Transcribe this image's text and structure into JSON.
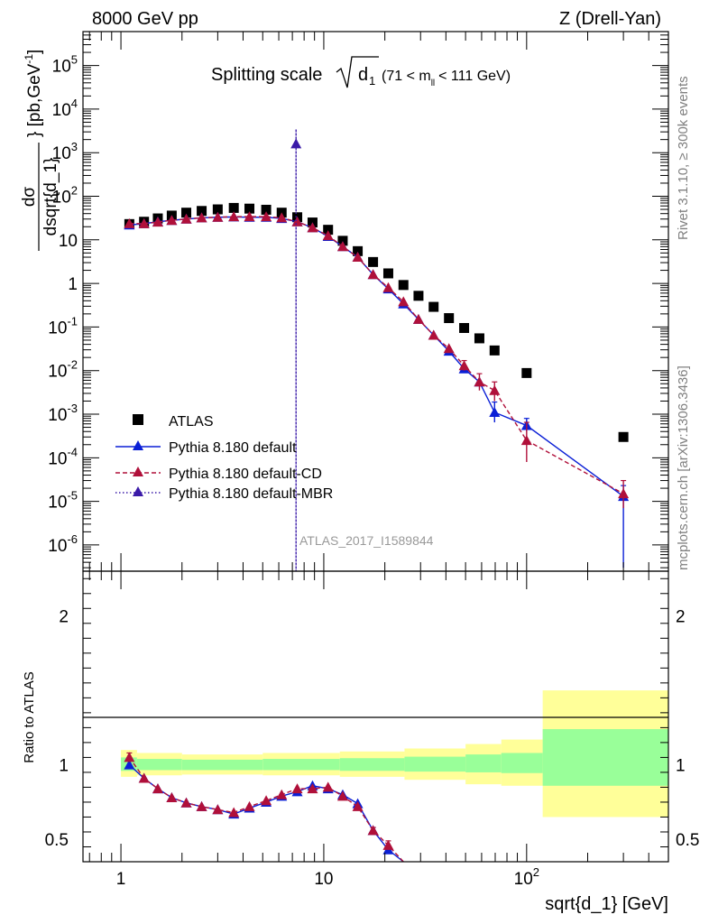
{
  "header": {
    "left": "8000 GeV pp",
    "right": "Z (Drell-Yan)"
  },
  "side_labels": {
    "rivet": "Rivet 3.1.10, ≥ 300k events",
    "mcplots": "mcplots.cern.ch [arXiv:1306.3436]"
  },
  "watermark": "ATLAS_2017_I1589844",
  "colors": {
    "atlas": "#000000",
    "default": "#0a1fd6",
    "cd": "#b0103a",
    "mbr": "#3a1aa8",
    "band_inner": "#99ff99",
    "band_outer": "#ffff99"
  },
  "chart_data": [
    {
      "type": "scatter",
      "panel": "main",
      "title": "Splitting scale √d₁ (71 < mₗₗ < 111 GeV)",
      "title_parts": {
        "pre": "Splitting scale",
        "sym": "d",
        "sub1": "1",
        "mid": "(71 < m",
        "sub2": "ll",
        "post": "< 111 GeV)"
      },
      "ylabel": "dσ/dsqrt{d_1} [pb,GeV⁻¹]",
      "ylabel_parts": {
        "num": "dσ",
        "den": "dsqrt{d_1}",
        "unit": "} [pb,GeV",
        "exp": "-1",
        "close": "]"
      },
      "xscale": "log",
      "yscale": "log",
      "xlim": [
        0.65,
        500
      ],
      "ylim": [
        2.5e-07,
        600000.0
      ],
      "yticks": [
        {
          "v": 100000.0,
          "base": "10",
          "exp": "5"
        },
        {
          "v": 10000.0,
          "base": "10",
          "exp": "4"
        },
        {
          "v": 1000.0,
          "base": "10",
          "exp": "3"
        },
        {
          "v": 100.0,
          "base": "10",
          "exp": "2"
        },
        {
          "v": 10,
          "base": "10",
          "exp": ""
        },
        {
          "v": 1,
          "base": "1",
          "exp": ""
        },
        {
          "v": 0.1,
          "base": "10",
          "exp": "-1"
        },
        {
          "v": 0.01,
          "base": "10",
          "exp": "-2"
        },
        {
          "v": 0.001,
          "base": "10",
          "exp": "-3"
        },
        {
          "v": 0.0001,
          "base": "10",
          "exp": "-4"
        },
        {
          "v": 1e-05,
          "base": "10",
          "exp": "-5"
        },
        {
          "v": 1e-06,
          "base": "10",
          "exp": "-6"
        }
      ],
      "legend": [
        {
          "key": "atlas",
          "label": "ATLAS"
        },
        {
          "key": "default",
          "label": "Pythia 8.180 default"
        },
        {
          "key": "cd",
          "label": "Pythia 8.180 default-CD"
        },
        {
          "key": "mbr",
          "label": "Pythia 8.180 default-MBR"
        }
      ],
      "series": [
        {
          "name": "ATLAS",
          "key": "atlas",
          "style": "square",
          "x": [
            1.1,
            1.3,
            1.52,
            1.78,
            2.1,
            2.5,
            3.0,
            3.6,
            4.3,
            5.2,
            6.2,
            7.4,
            8.8,
            10.5,
            12.4,
            14.7,
            17.5,
            20.8,
            24.7,
            29.3,
            34.8,
            41.4,
            49.2,
            58.5,
            69.5,
            100,
            300
          ],
          "y": [
            23,
            26,
            31,
            36,
            42,
            46,
            50,
            54,
            52,
            49,
            42,
            33,
            25,
            17,
            9.5,
            5.5,
            3.1,
            1.7,
            0.92,
            0.52,
            0.29,
            0.16,
            0.095,
            0.055,
            0.029,
            0.0088,
            0.0003
          ]
        },
        {
          "name": "Pythia 8.180 default",
          "key": "default",
          "style": "line",
          "x": [
            1.1,
            1.3,
            1.52,
            1.78,
            2.1,
            2.5,
            3.0,
            3.6,
            4.3,
            5.2,
            6.2,
            7.4,
            8.8,
            10.5,
            12.4,
            14.7,
            17.5,
            20.8,
            24.7,
            29.3,
            34.8,
            41.4,
            49.2,
            58.5,
            69.5,
            100,
            300
          ],
          "y": [
            22,
            23.5,
            26,
            28,
            30,
            32,
            33,
            33.5,
            33,
            33,
            31,
            26,
            19,
            12,
            7,
            4,
            1.6,
            0.75,
            0.34,
            0.15,
            0.065,
            0.028,
            0.011,
            0.0055,
            0.0011,
            0.00055,
            1.3e-05
          ],
          "err_lo": [
            null,
            null,
            null,
            null,
            null,
            null,
            null,
            null,
            null,
            null,
            null,
            null,
            null,
            null,
            null,
            null,
            null,
            null,
            null,
            null,
            null,
            null,
            null,
            null,
            0.00045,
            0.00015,
            1.27e-05
          ],
          "err_hi": [
            null,
            null,
            null,
            null,
            null,
            null,
            null,
            null,
            null,
            null,
            null,
            null,
            null,
            null,
            null,
            null,
            null,
            null,
            null,
            null,
            null,
            null,
            null,
            null,
            0.0008,
            0.00025,
            1e-05
          ]
        },
        {
          "name": "Pythia 8.180 default-CD",
          "key": "cd",
          "style": "dashed",
          "x": [
            1.1,
            1.3,
            1.52,
            1.78,
            2.1,
            2.5,
            3.0,
            3.6,
            4.3,
            5.2,
            6.2,
            7.4,
            8.8,
            10.5,
            12.4,
            14.7,
            17.5,
            20.8,
            24.7,
            29.3,
            34.8,
            41.4,
            49.2,
            58.5,
            69.5,
            100,
            300
          ],
          "y": [
            23.5,
            23.5,
            25.5,
            28,
            30,
            32,
            33,
            34,
            34,
            34,
            32,
            26,
            19,
            12.5,
            7,
            4,
            1.6,
            0.8,
            0.38,
            0.15,
            0.065,
            0.032,
            0.013,
            0.0055,
            0.0035,
            0.00025,
            1.5e-05
          ],
          "err_lo": [
            null,
            null,
            null,
            null,
            null,
            null,
            null,
            null,
            null,
            null,
            null,
            null,
            null,
            null,
            null,
            null,
            null,
            null,
            null,
            null,
            null,
            null,
            0.003,
            0.002,
            0.0015,
            0.00017,
            8e-06
          ],
          "err_hi": [
            null,
            null,
            null,
            null,
            null,
            null,
            null,
            null,
            null,
            null,
            null,
            null,
            null,
            null,
            null,
            null,
            null,
            null,
            null,
            null,
            null,
            null,
            0.004,
            0.003,
            0.002,
            0.0004,
            1.5e-05
          ]
        },
        {
          "name": "Pythia 8.180 default-MBR",
          "key": "mbr",
          "style": "dotted",
          "x": [
            7.3
          ],
          "y": [
            1600
          ],
          "err_lo": [
            1600
          ],
          "err_hi": [
            1800
          ]
        }
      ]
    },
    {
      "type": "line",
      "panel": "ratio",
      "ylabel": "Ratio to ATLAS",
      "xlabel": "sqrt{d_1} [GeV]",
      "xscale": "log",
      "xlim": [
        0.65,
        500
      ],
      "ylim": [
        0.35,
        2.3
      ],
      "yticks": [
        {
          "v": 2,
          "label": "2"
        },
        {
          "v": 1,
          "label": "1"
        },
        {
          "v": 0.5,
          "label": "0.5"
        }
      ],
      "xticks": [
        {
          "v": 1,
          "label": "1",
          "exp": ""
        },
        {
          "v": 10,
          "label": "10",
          "exp": ""
        },
        {
          "v": 100,
          "label": "10",
          "exp": "2"
        }
      ],
      "bands": [
        {
          "x0": 1.0,
          "x1": 1.2,
          "outer": [
            0.92,
            1.1
          ],
          "inner": [
            0.96,
            1.05
          ]
        },
        {
          "x0": 1.2,
          "x1": 2.0,
          "outer": [
            0.93,
            1.08
          ],
          "inner": [
            0.965,
            1.04
          ]
        },
        {
          "x0": 2.0,
          "x1": 5.0,
          "outer": [
            0.935,
            1.07
          ],
          "inner": [
            0.965,
            1.035
          ]
        },
        {
          "x0": 5.0,
          "x1": 12.0,
          "outer": [
            0.93,
            1.08
          ],
          "inner": [
            0.965,
            1.04
          ]
        },
        {
          "x0": 12.0,
          "x1": 25.0,
          "outer": [
            0.92,
            1.09
          ],
          "inner": [
            0.96,
            1.045
          ]
        },
        {
          "x0": 25.0,
          "x1": 50.0,
          "outer": [
            0.9,
            1.11
          ],
          "inner": [
            0.955,
            1.055
          ]
        },
        {
          "x0": 50.0,
          "x1": 75.0,
          "outer": [
            0.87,
            1.14
          ],
          "inner": [
            0.95,
            1.07
          ]
        },
        {
          "x0": 75.0,
          "x1": 120.0,
          "outer": [
            0.86,
            1.17
          ],
          "inner": [
            0.945,
            1.08
          ]
        },
        {
          "x0": 120.0,
          "x1": 500.0,
          "outer": [
            0.65,
            1.5
          ],
          "inner": [
            0.86,
            1.24
          ]
        }
      ],
      "series": [
        {
          "name": "Pythia 8.180 default",
          "key": "default",
          "style": "line",
          "x": [
            1.1,
            1.3,
            1.52,
            1.78,
            2.1,
            2.5,
            3.0,
            3.6,
            4.3,
            5.2,
            6.2,
            7.4,
            8.8,
            10.5,
            12.4,
            14.7,
            17.5,
            20.8,
            24.7
          ],
          "y": [
            1.0,
            0.91,
            0.84,
            0.78,
            0.745,
            0.72,
            0.7,
            0.67,
            0.71,
            0.75,
            0.79,
            0.82,
            0.86,
            0.84,
            0.8,
            0.74,
            0.56,
            0.43,
            0.3
          ],
          "err_lo": [
            null,
            null,
            null,
            null,
            null,
            null,
            null,
            null,
            null,
            null,
            null,
            null,
            null,
            null,
            null,
            null,
            0.02,
            0.02,
            null
          ],
          "err_hi": [
            null,
            null,
            null,
            null,
            null,
            null,
            null,
            null,
            null,
            null,
            null,
            null,
            null,
            null,
            null,
            null,
            0.02,
            0.02,
            null
          ]
        },
        {
          "name": "Pythia 8.180 default-CD",
          "key": "cd",
          "style": "dashed",
          "x": [
            1.1,
            1.3,
            1.52,
            1.78,
            2.1,
            2.5,
            3.0,
            3.6,
            4.3,
            5.2,
            6.2,
            7.4,
            8.8,
            10.5,
            12.4,
            14.7,
            17.5,
            20.8,
            24.7
          ],
          "y": [
            1.05,
            0.91,
            0.84,
            0.78,
            0.745,
            0.72,
            0.7,
            0.68,
            0.72,
            0.76,
            0.8,
            0.84,
            0.84,
            0.85,
            0.79,
            0.72,
            0.56,
            0.46,
            0.34
          ],
          "err_lo": [
            0.03,
            null,
            null,
            null,
            null,
            null,
            null,
            null,
            null,
            null,
            null,
            null,
            null,
            null,
            null,
            null,
            0.02,
            0.03,
            null
          ],
          "err_hi": [
            0.03,
            null,
            null,
            null,
            null,
            null,
            null,
            null,
            null,
            null,
            null,
            null,
            null,
            null,
            null,
            null,
            0.02,
            0.03,
            null
          ]
        }
      ]
    }
  ]
}
